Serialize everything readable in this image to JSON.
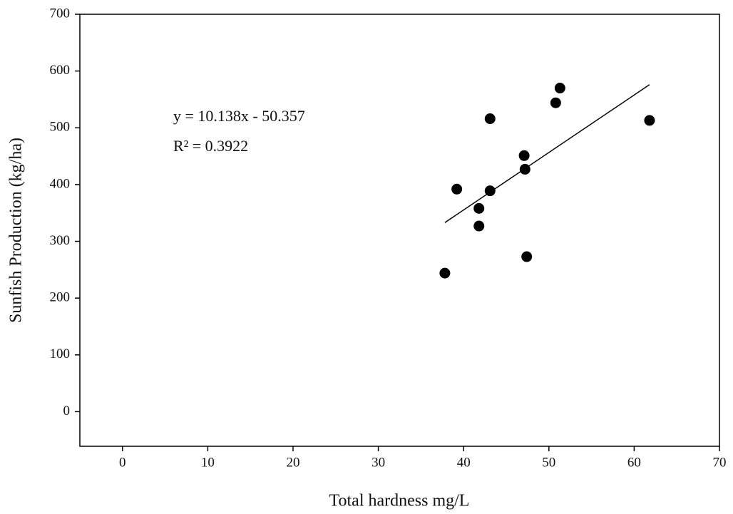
{
  "chart_data": {
    "type": "scatter",
    "x_label": "Total hardness mg/L",
    "y_label": "Sunfish Production (kg/ha)",
    "annotations": [
      "y = 10.138x - 50.357",
      "R² = 0.3922"
    ],
    "x": [
      37.8,
      39.2,
      41.8,
      41.8,
      43.1,
      43.1,
      47.1,
      47.2,
      47.4,
      50.8,
      51.3,
      61.8
    ],
    "values": [
      244,
      392,
      358,
      327,
      516,
      389,
      451,
      427,
      273,
      544,
      570,
      513
    ],
    "color": "#000000",
    "trendline": {
      "x": [
        37.8,
        61.8
      ],
      "y": [
        333,
        576
      ]
    },
    "xlim": [
      -5,
      70
    ],
    "xticks": [
      0,
      10,
      20,
      30,
      40,
      50,
      60,
      70
    ],
    "ylim": [
      -61,
      700
    ],
    "yticks": [
      0,
      100,
      200,
      300,
      400,
      500,
      600,
      700
    ]
  }
}
